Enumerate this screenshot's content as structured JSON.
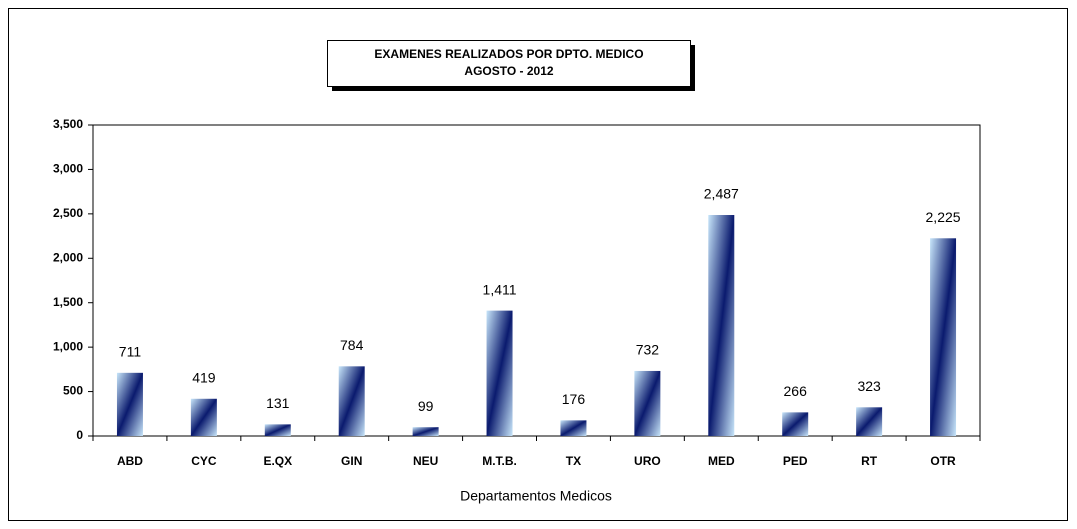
{
  "chart_data": {
    "type": "bar",
    "title": "EXAMENES REALIZADOS POR DPTO. MEDICO",
    "subtitle": "AGOSTO  - 2012",
    "x_label": "Departamentos Medicos",
    "categories": [
      "ABD",
      "CYC",
      "E.QX",
      "GIN",
      "NEU",
      "M.T.B.",
      "TX",
      "URO",
      "MED",
      "PED",
      "RT",
      "OTR"
    ],
    "values": [
      711,
      419,
      131,
      784,
      99,
      1411,
      176,
      732,
      2487,
      266,
      323,
      2225
    ],
    "value_labels": [
      "711",
      "419",
      "131",
      "784",
      "99",
      "1,411",
      "176",
      "732",
      "2,487",
      "266",
      "323",
      "2,225"
    ],
    "color": "#0a1a6e",
    "ylim": [
      0,
      3500
    ],
    "yticks": [
      0,
      500,
      {
        "value": 1000,
        "label": "1,000"
      },
      {
        "value": 1500,
        "label": "1,500"
      },
      {
        "value": 2000,
        "label": "2,000"
      },
      {
        "value": 2500,
        "label": "2,500"
      },
      {
        "value": 3000,
        "label": "3,000"
      },
      {
        "value": 3500,
        "label": "3,500"
      }
    ],
    "grid": false
  }
}
